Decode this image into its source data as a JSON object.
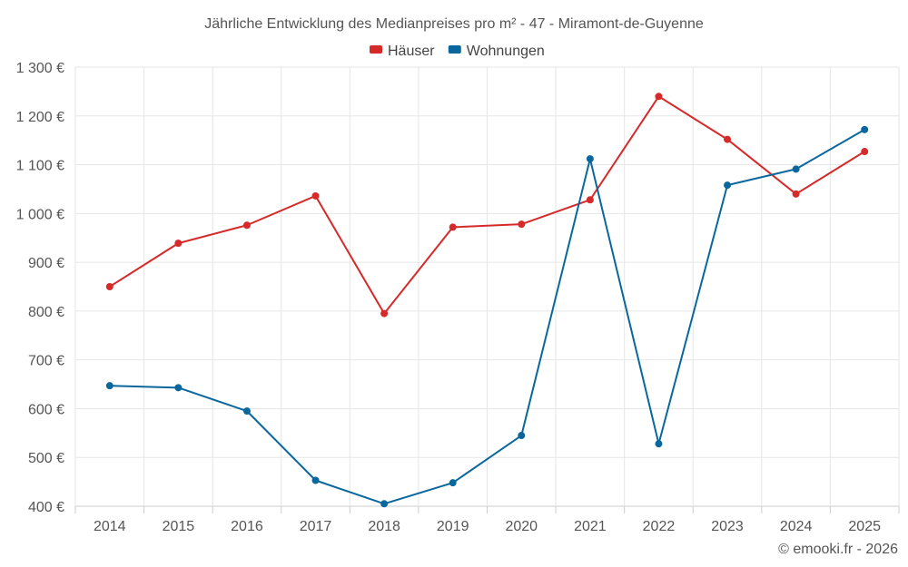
{
  "chart_data": {
    "type": "line",
    "title": "Jährliche Entwicklung des Medianpreises pro m² - 47 - Miramont-de-Guyenne",
    "categories": [
      "2014",
      "2015",
      "2016",
      "2017",
      "2018",
      "2019",
      "2020",
      "2021",
      "2022",
      "2023",
      "2024",
      "2025"
    ],
    "series": [
      {
        "name": "Häuser",
        "color": "#d62a2a",
        "values": [
          850,
          939,
          976,
          1036,
          795,
          972,
          978,
          1028,
          1240,
          1152,
          1040,
          1127
        ]
      },
      {
        "name": "Wohnungen",
        "color": "#0a679e",
        "values": [
          647,
          643,
          595,
          453,
          405,
          448,
          545,
          1112,
          528,
          1058,
          1091,
          1172
        ]
      }
    ],
    "ylim": [
      400,
      1300
    ],
    "yticks": [
      400,
      500,
      600,
      700,
      800,
      900,
      1000,
      1100,
      1200,
      1300
    ],
    "ytick_labels": [
      "400 €",
      "500 €",
      "600 €",
      "700 €",
      "800 €",
      "900 €",
      "1 000 €",
      "1 100 €",
      "1 200 €",
      "1 300 €"
    ],
    "xlabel": "",
    "ylabel": "",
    "grid": true,
    "legend_position": "top-center"
  },
  "credit": "© emooki.fr - 2026"
}
